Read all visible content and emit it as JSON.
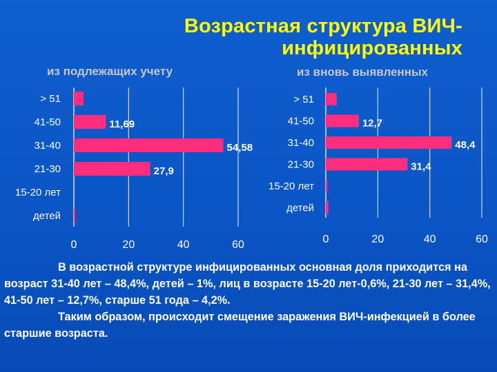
{
  "title": {
    "line1": "Возрастная структура ВИЧ-",
    "line2": "инфицированных"
  },
  "chart_data": [
    {
      "type": "bar",
      "orientation": "horizontal",
      "title": "из подлежащих учету",
      "categories": [
        "> 51",
        "41-50",
        "31-40",
        "21-30",
        "15-20 лет",
        "детей"
      ],
      "values": [
        3.5,
        11.69,
        54.58,
        27.9,
        0,
        0.4
      ],
      "data_labels": [
        "",
        "11,69",
        "54,58",
        "27,9",
        "",
        ""
      ],
      "xlim": [
        0,
        60
      ],
      "xticks": [
        "0",
        "20",
        "40",
        "60"
      ],
      "grid": true,
      "color": "#ff2d7e"
    },
    {
      "type": "bar",
      "orientation": "horizontal",
      "title": "из вновь выявленных",
      "categories": [
        "> 51",
        "41-50",
        "31-40",
        "21-30",
        "15-20 лет",
        "детей"
      ],
      "values": [
        4.2,
        12.7,
        48.4,
        31.4,
        0.6,
        1
      ],
      "data_labels": [
        "",
        "12,7",
        "48,4",
        "31,4",
        "",
        ""
      ],
      "xlim": [
        0,
        60
      ],
      "xticks": [
        "0",
        "20",
        "40",
        "60"
      ],
      "grid": true,
      "color": "#ff2d7e"
    }
  ],
  "footer": {
    "paragraph1": "В возрастной структуре инфицированных основная доля приходится на возраст 31-40 лет – 48,4%, детей – 1%, лиц в возрасте 15-20 лет-0,6%, 21-30 лет – 31,4%, 41-50 лет – 12,7%, старше 51 года – 4,2%.",
    "paragraph2": "Таким образом,  происходит смещение заражения ВИЧ-инфекцией в более старшие возраста."
  }
}
